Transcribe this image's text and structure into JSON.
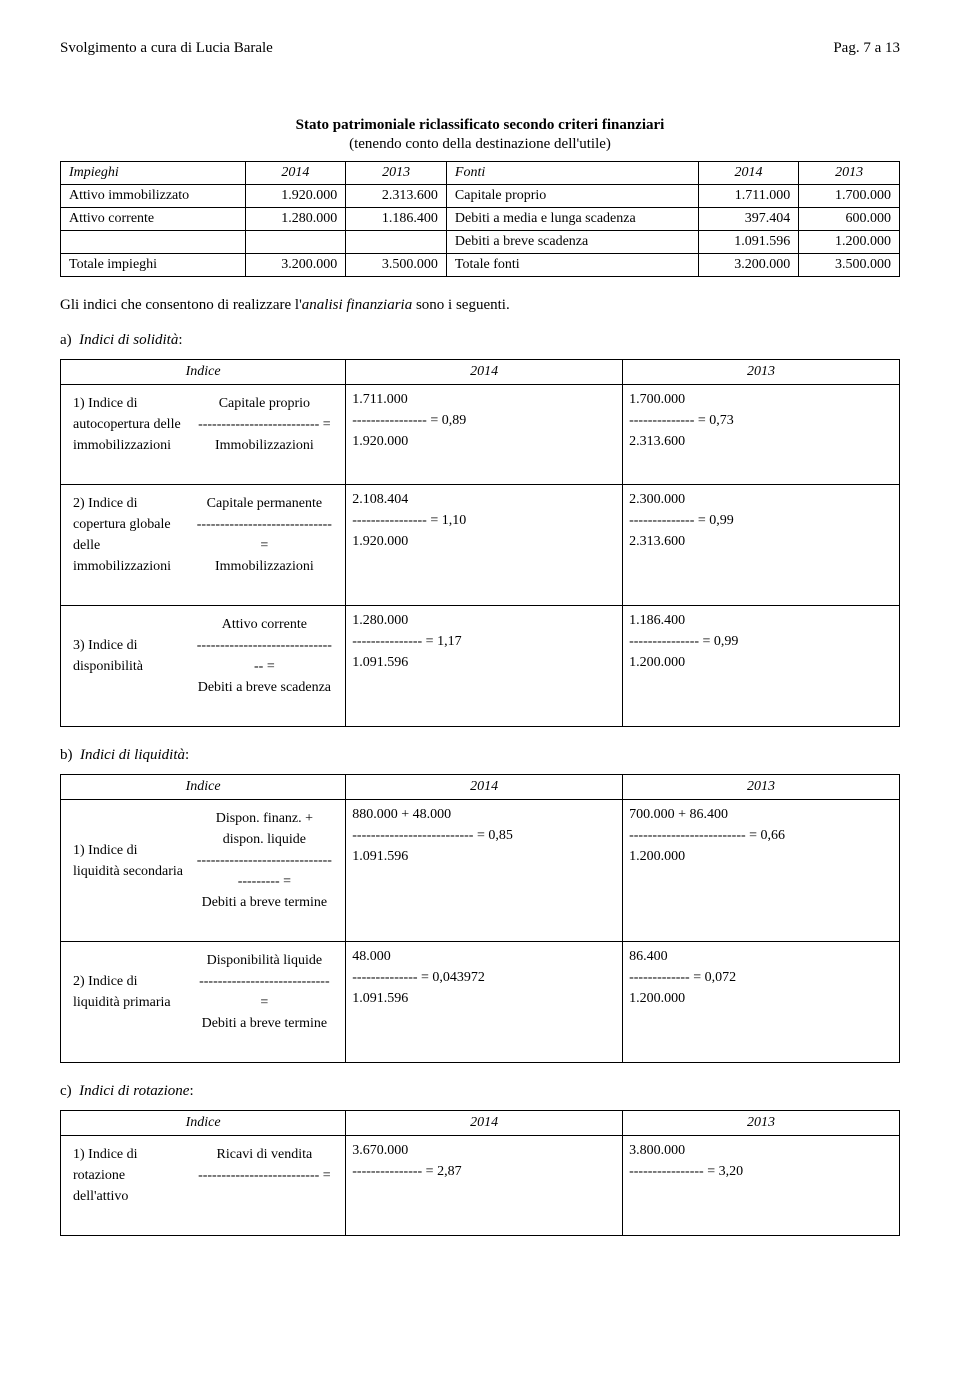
{
  "header": {
    "left": "Svolgimento a cura di Lucia Barale",
    "right": "Pag. 7 a 13"
  },
  "title": "Stato patrimoniale riclassificato secondo criteri finanziari",
  "subtitle": "(tenendo conto della destinazione dell'utile)",
  "patrimoniale": {
    "left_header": [
      "Impieghi",
      "2014",
      "2013"
    ],
    "right_header": [
      "Fonti",
      "2014",
      "2013"
    ],
    "rows": [
      {
        "l": [
          "Attivo immobilizzato",
          "1.920.000",
          "2.313.600"
        ],
        "r": [
          "Capitale proprio",
          "1.711.000",
          "1.700.000"
        ]
      },
      {
        "l": [
          "Attivo corrente",
          "1.280.000",
          "1.186.400"
        ],
        "r": [
          "Debiti a media e lunga scadenza",
          "397.404",
          "600.000"
        ]
      },
      {
        "l": [
          "",
          "",
          ""
        ],
        "r": [
          "Debiti a breve scadenza",
          "1.091.596",
          "1.200.000"
        ]
      },
      {
        "l": [
          "Totale impieghi",
          "3.200.000",
          "3.500.000"
        ],
        "r": [
          "Totale fonti",
          "3.200.000",
          "3.500.000"
        ]
      }
    ]
  },
  "para_intro": "Gli indici che consentono di realizzare l'analisi finanziaria sono i seguenti.",
  "sections": {
    "a": {
      "label": "a)  Indici di solidità:",
      "header": [
        "Indice",
        "2014",
        "2013"
      ],
      "rows": [
        {
          "name": "1) Indice di autocopertura delle immobilizzazioni",
          "f_top": "Capitale proprio",
          "f_mid": "-------------------------- =",
          "f_bot": "Immobilizzazioni",
          "v14_top": "1.711.000",
          "v14_mid": "---------------- = 0,89",
          "v14_bot": " 1.920.000",
          "v13_top": "1.700.000",
          "v13_mid": "-------------- = 0,73",
          "v13_bot": "2.313.600"
        },
        {
          "name": "2) Indice di copertura globale delle immobilizzazioni",
          "f_top": "Capitale permanente",
          "f_mid": "----------------------------- =",
          "f_bot": "Immobilizzazioni",
          "v14_top": "2.108.404",
          "v14_mid": "---------------- = 1,10",
          "v14_bot": "1.920.000",
          "v13_top": "2.300.000",
          "v13_mid": "-------------- = 0,99",
          "v13_bot": "2.313.600"
        },
        {
          "name": "3) Indice di disponibilità",
          "f_top": "Attivo corrente",
          "f_mid": "------------------------------- =",
          "f_bot": "Debiti a breve scadenza",
          "v14_top": "1.280.000",
          "v14_mid": "--------------- = 1,17",
          "v14_bot": "1.091.596",
          "v13_top": "1.186.400",
          "v13_mid": "--------------- = 0,99",
          "v13_bot": "1.200.000"
        }
      ]
    },
    "b": {
      "label": "b)  Indici di liquidità:",
      "header": [
        "Indice",
        "2014",
        "2013"
      ],
      "rows": [
        {
          "name": "1) Indice di liquidità secondaria",
          "f_top": "Dispon. finanz. + dispon. liquide",
          "f_mid": "-------------------------------------- =",
          "f_bot": "Debiti a breve termine",
          "v14_top": "880.000 + 48.000",
          "v14_mid": "-------------------------- = 0,85",
          "v14_bot": "1.091.596",
          "v13_top": "700.000 + 86.400",
          "v13_mid": "------------------------- = 0,66",
          "v13_bot": " 1.200.000"
        },
        {
          "name": "2) Indice di liquidità primaria",
          "f_top": "Disponibilità liquide",
          "f_mid": "---------------------------- =",
          "f_bot": "Debiti a breve termine",
          "v14_top": " 48.000",
          "v14_mid": " -------------- = 0,043972",
          "v14_bot": "1.091.596",
          "v13_top": " 86.400",
          "v13_mid": "------------- = 0,072",
          "v13_bot": "1.200.000"
        }
      ]
    },
    "c": {
      "label": "c)  Indici di rotazione:",
      "header": [
        "Indice",
        "2014",
        "2013"
      ],
      "rows": [
        {
          "name": "1) Indice di rotazione dell'attivo",
          "f_top": "Ricavi di vendita",
          "f_mid": "-------------------------- =",
          "f_bot": "",
          "v14_top": "3.670.000",
          "v14_mid": "---------------  = 2,87",
          "v14_bot": "",
          "v13_top": "3.800.000",
          "v13_mid": "---------------- = 3,20",
          "v13_bot": ""
        }
      ]
    }
  }
}
